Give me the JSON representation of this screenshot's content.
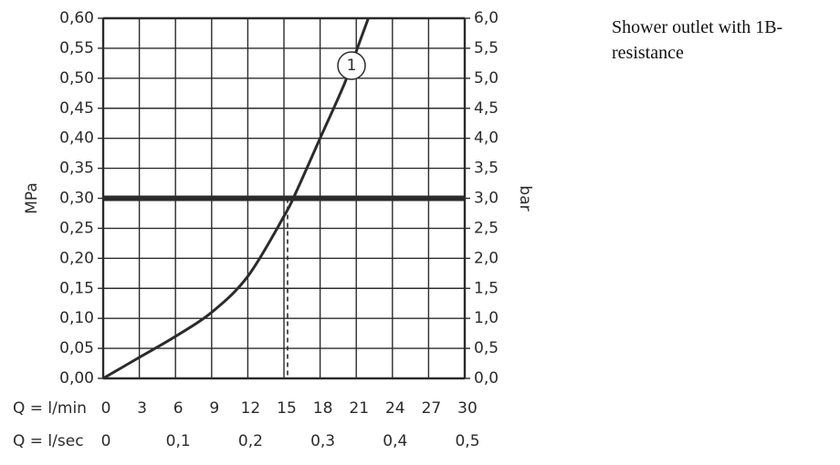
{
  "caption": "Shower outlet with 1B-resistance",
  "chart_data": {
    "type": "line",
    "ylabel_left": "MPa",
    "ylabel_right": "bar",
    "left_ticks": [
      "0,00",
      "0,05",
      "0,10",
      "0,15",
      "0,20",
      "0,25",
      "0,30",
      "0,35",
      "0,40",
      "0,45",
      "0,50",
      "0,55",
      "0,60"
    ],
    "right_ticks": [
      "0,0",
      "0,5",
      "1,0",
      "1,5",
      "2,0",
      "2,5",
      "3,0",
      "3,5",
      "4,0",
      "4,5",
      "5,0",
      "5,5",
      "6,0"
    ],
    "x_row_min_label": "Q = l/min",
    "x_ticks_min": [
      "0",
      "3",
      "6",
      "9",
      "12",
      "15",
      "18",
      "21",
      "24",
      "27",
      "30"
    ],
    "x_row_sec_label": "Q = l/sec",
    "x_ticks_sec": [
      "0",
      "0,1",
      "0,2",
      "0,3",
      "0,4",
      "0,5"
    ],
    "xlim": [
      0,
      30
    ],
    "ylim": [
      0,
      0.6
    ],
    "grid": true,
    "series": [
      {
        "label": "1",
        "x": [
          0,
          3,
          6,
          9,
          12,
          15,
          16,
          18,
          20,
          21,
          22
        ],
        "y": [
          0,
          0.035,
          0.07,
          0.11,
          0.17,
          0.27,
          0.31,
          0.4,
          0.49,
          0.545,
          0.6
        ]
      }
    ],
    "reference_line": {
      "y": 0.3
    },
    "reference_drop": {
      "x": 15.3,
      "y": 0.3
    }
  }
}
